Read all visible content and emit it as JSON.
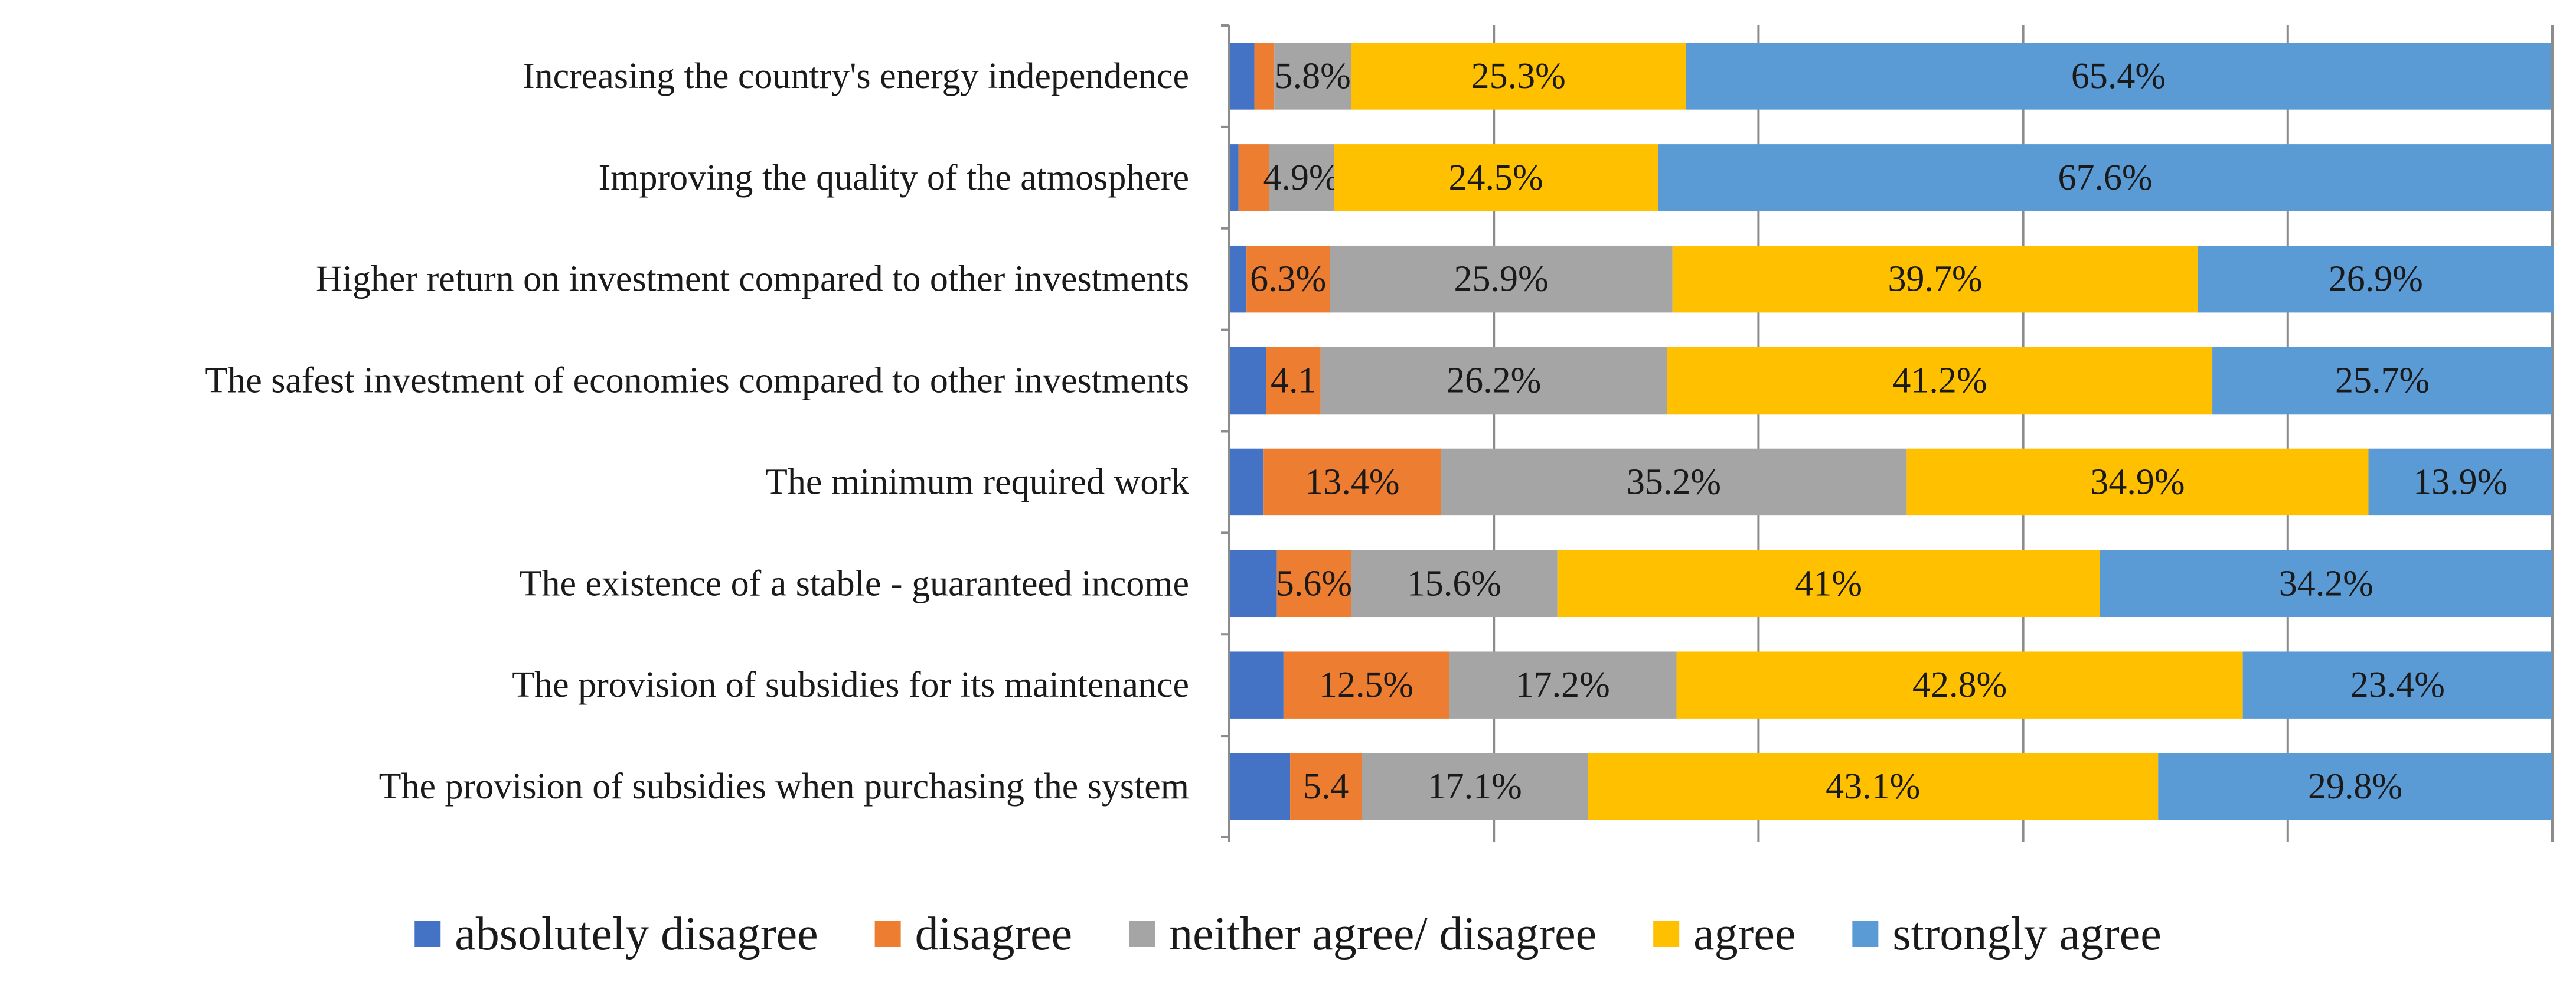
{
  "chart_data": {
    "type": "bar",
    "orientation": "horizontal",
    "stacked": true,
    "percent_stacked": true,
    "xlim": [
      0,
      100
    ],
    "gridlines": "vertical",
    "legend_position": "bottom",
    "categories": [
      "Increasing the country's energy independence",
      "Improving the quality of the atmosphere",
      "Higher return on investment compared to other investments",
      "The safest investment of economies compared to other investments",
      "The minimum required work",
      "The existence of a stable - guaranteed income",
      "The provision of subsidies for its maintenance",
      "The provision of subsidies when purchasing the system"
    ],
    "series": [
      {
        "name": "absolutely disagree",
        "color": "#4472C4",
        "values": [
          1.9,
          0.7,
          1.3,
          2.8,
          2.6,
          3.6,
          4.1,
          4.6
        ],
        "labels": [
          "",
          "",
          "",
          "",
          "",
          "",
          "",
          ""
        ]
      },
      {
        "name": "disagree",
        "color": "#ED7D31",
        "values": [
          1.5,
          2.3,
          6.3,
          4.1,
          13.4,
          5.6,
          12.5,
          5.4
        ],
        "labels": [
          "",
          "",
          "6.3%",
          "4.1",
          "13.4%",
          "5.6%",
          "12.5%",
          "5.4"
        ]
      },
      {
        "name": "neither agree/ disagree",
        "color": "#A5A5A5",
        "values": [
          5.8,
          4.9,
          25.9,
          26.2,
          35.2,
          15.6,
          17.2,
          17.1
        ],
        "labels": [
          "5.8%",
          "4.9%",
          "25.9%",
          "26.2%",
          "35.2%",
          "15.6%",
          "17.2%",
          "17.1%"
        ]
      },
      {
        "name": "agree",
        "color": "#FFC000",
        "values": [
          25.3,
          24.5,
          39.7,
          41.2,
          34.9,
          41,
          42.8,
          43.1
        ],
        "labels": [
          "25.3%",
          "24.5%",
          "39.7%",
          "41.2%",
          "34.9%",
          "41%",
          "42.8%",
          "43.1%"
        ]
      },
      {
        "name": "strongly agree",
        "color": "#5B9BD5",
        "values": [
          65.4,
          67.6,
          26.9,
          25.7,
          13.9,
          34.2,
          23.4,
          29.8
        ],
        "labels": [
          "65.4%",
          "67.6%",
          "26.9%",
          "25.7%",
          "13.9%",
          "34.2%",
          "23.4%",
          "29.8%"
        ]
      }
    ],
    "axis_color": "#8C8C8C"
  }
}
